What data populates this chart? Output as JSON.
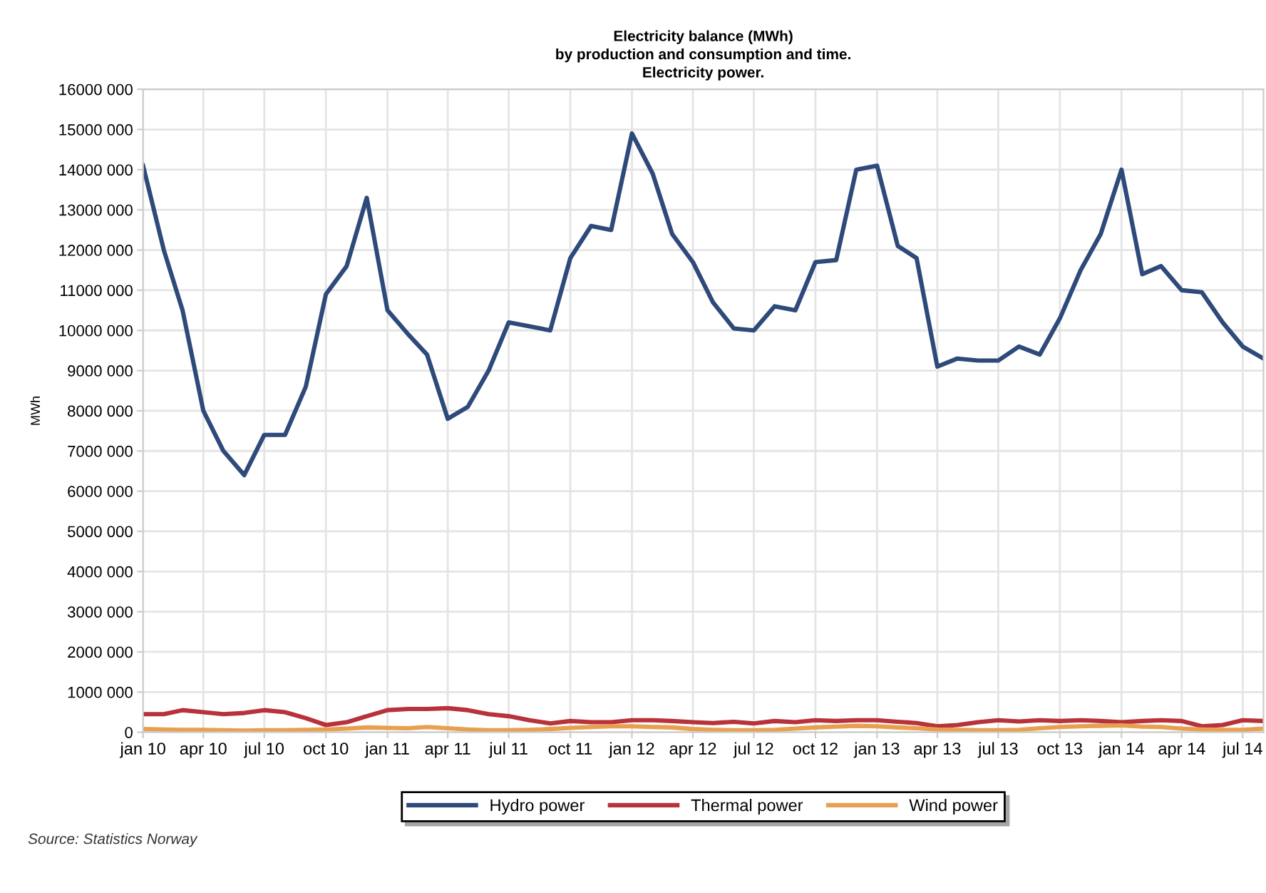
{
  "chart_data": {
    "type": "line",
    "title": "Electricity balance (MWh)\nby production and consumption and time.\nElectricity power.",
    "ylabel": "MWh",
    "x": [
      "2010-01",
      "2010-02",
      "2010-03",
      "2010-04",
      "2010-05",
      "2010-06",
      "2010-07",
      "2010-08",
      "2010-09",
      "2010-10",
      "2010-11",
      "2010-12",
      "2011-01",
      "2011-02",
      "2011-03",
      "2011-04",
      "2011-05",
      "2011-06",
      "2011-07",
      "2011-08",
      "2011-09",
      "2011-10",
      "2011-11",
      "2011-12",
      "2012-01",
      "2012-02",
      "2012-03",
      "2012-04",
      "2012-05",
      "2012-06",
      "2012-07",
      "2012-08",
      "2012-09",
      "2012-10",
      "2012-11",
      "2012-12",
      "2013-01",
      "2013-02",
      "2013-03",
      "2013-04",
      "2013-05",
      "2013-06",
      "2013-07",
      "2013-08",
      "2013-09",
      "2013-10",
      "2013-11",
      "2013-12",
      "2014-01",
      "2014-02",
      "2014-03",
      "2014-04",
      "2014-05",
      "2014-06",
      "2014-07",
      "2014-08"
    ],
    "series": [
      {
        "name": "Hydro power",
        "color": "#2e4a7a",
        "values": [
          14100000,
          12000000,
          10500000,
          8000000,
          7000000,
          6400000,
          7400000,
          7400000,
          8600000,
          10900000,
          11600000,
          13300000,
          10500000,
          9900000,
          9400000,
          7800000,
          8100000,
          9000000,
          10200000,
          10100000,
          10000000,
          11800000,
          12600000,
          12500000,
          14900000,
          13900000,
          12400000,
          11700000,
          10700000,
          10050000,
          10000000,
          10600000,
          10500000,
          11700000,
          11750000,
          14000000,
          14100000,
          12100000,
          11800000,
          9100000,
          9300000,
          9250000,
          9250000,
          9600000,
          9400000,
          10300000,
          11500000,
          12400000,
          14000000,
          11400000,
          11600000,
          11000000,
          10950000,
          10200000,
          9600000,
          9300000
        ]
      },
      {
        "name": "Thermal power",
        "color": "#b8323a",
        "values": [
          450000,
          450000,
          550000,
          500000,
          450000,
          480000,
          550000,
          500000,
          350000,
          180000,
          250000,
          400000,
          550000,
          580000,
          580000,
          600000,
          550000,
          450000,
          400000,
          300000,
          220000,
          280000,
          250000,
          250000,
          300000,
          300000,
          280000,
          250000,
          230000,
          260000,
          220000,
          280000,
          250000,
          300000,
          280000,
          300000,
          300000,
          260000,
          230000,
          150000,
          180000,
          250000,
          300000,
          270000,
          300000,
          280000,
          300000,
          280000,
          250000,
          280000,
          300000,
          280000,
          150000,
          180000,
          300000,
          280000
        ]
      },
      {
        "name": "Wind power",
        "color": "#e8a050",
        "values": [
          80000,
          70000,
          60000,
          60000,
          50000,
          40000,
          50000,
          50000,
          60000,
          70000,
          90000,
          120000,
          110000,
          100000,
          130000,
          100000,
          70000,
          50000,
          50000,
          60000,
          80000,
          110000,
          130000,
          150000,
          150000,
          130000,
          120000,
          80000,
          60000,
          50000,
          50000,
          60000,
          90000,
          120000,
          140000,
          160000,
          150000,
          120000,
          100000,
          70000,
          60000,
          50000,
          50000,
          60000,
          100000,
          130000,
          150000,
          160000,
          170000,
          140000,
          130000,
          90000,
          70000,
          60000,
          60000,
          90000
        ]
      }
    ],
    "xlim": [
      "2010-01",
      "2014-08"
    ],
    "xticks": [
      {
        "value": "2010-01",
        "label": "jan 10"
      },
      {
        "value": "2010-04",
        "label": "apr 10"
      },
      {
        "value": "2010-07",
        "label": "jul 10"
      },
      {
        "value": "2010-10",
        "label": "oct 10"
      },
      {
        "value": "2011-01",
        "label": "jan 11"
      },
      {
        "value": "2011-04",
        "label": "apr 11"
      },
      {
        "value": "2011-07",
        "label": "jul 11"
      },
      {
        "value": "2011-10",
        "label": "oct 11"
      },
      {
        "value": "2012-01",
        "label": "jan 12"
      },
      {
        "value": "2012-04",
        "label": "apr 12"
      },
      {
        "value": "2012-07",
        "label": "jul 12"
      },
      {
        "value": "2012-10",
        "label": "oct 12"
      },
      {
        "value": "2013-01",
        "label": "jan 13"
      },
      {
        "value": "2013-04",
        "label": "apr 13"
      },
      {
        "value": "2013-07",
        "label": "jul 13"
      },
      {
        "value": "2013-10",
        "label": "oct 13"
      },
      {
        "value": "2014-01",
        "label": "jan 14"
      },
      {
        "value": "2014-04",
        "label": "apr 14"
      },
      {
        "value": "2014-07",
        "label": "jul 14"
      }
    ],
    "ylim": [
      0,
      16000000
    ],
    "yticks": [
      0,
      {
        "value": 1000000,
        "label": "1000 000"
      },
      {
        "value": 2000000,
        "label": "2000 000"
      },
      {
        "value": 3000000,
        "label": "3000 000"
      },
      {
        "value": 4000000,
        "label": "4000 000"
      },
      {
        "value": 5000000,
        "label": "5000 000"
      },
      {
        "value": 6000000,
        "label": "6000 000"
      },
      {
        "value": 7000000,
        "label": "7000 000"
      },
      {
        "value": 8000000,
        "label": "8000 000"
      },
      {
        "value": 9000000,
        "label": "9000 000"
      },
      {
        "value": 10000000,
        "label": "10000 000"
      },
      {
        "value": 11000000,
        "label": "11000 000"
      },
      {
        "value": 12000000,
        "label": "12000 000"
      },
      {
        "value": 13000000,
        "label": "13000 000"
      },
      {
        "value": 14000000,
        "label": "14000 000"
      },
      {
        "value": 15000000,
        "label": "15000 000"
      },
      {
        "value": 16000000,
        "label": "16000 000"
      }
    ],
    "grid": true,
    "legend": "bottom",
    "marker": "none",
    "line_style": "solid",
    "annotations": [
      "Source: Statistics Norway"
    ]
  }
}
